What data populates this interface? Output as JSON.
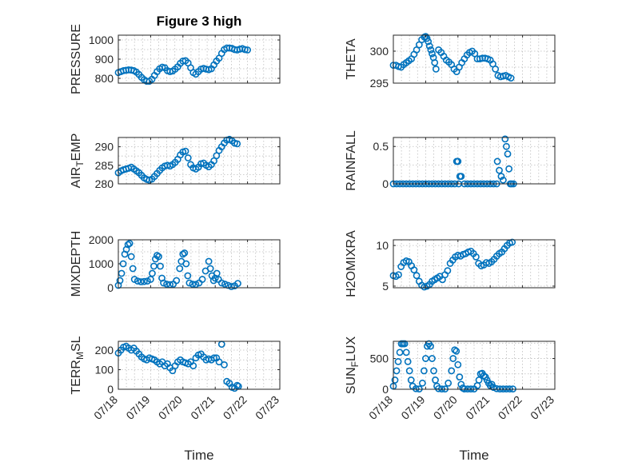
{
  "chart_data": [
    {
      "id": "pressure",
      "type": "scatter",
      "title": "Figure 3 high",
      "ylabel": "PRESSURE",
      "ylabel_sub": null,
      "ylim": [
        775,
        1025
      ],
      "yticks": [
        800,
        900,
        1000
      ],
      "xlim": [
        0,
        5
      ],
      "xticks": [
        "07/18",
        "07/19",
        "07/20",
        "07/21",
        "07/22",
        "07/23"
      ],
      "show_xticklabels": false,
      "xlabel": "",
      "grid": true,
      "color": "#0072BD",
      "x": [
        0,
        0.08,
        0.16,
        0.24,
        0.32,
        0.4,
        0.48,
        0.56,
        0.64,
        0.72,
        0.8,
        0.88,
        0.96,
        1.04,
        1.12,
        1.2,
        1.28,
        1.36,
        1.44,
        1.52,
        1.6,
        1.68,
        1.76,
        1.84,
        1.92,
        2.0,
        2.08,
        2.16,
        2.24,
        2.32,
        2.4,
        2.48,
        2.56,
        2.64,
        2.72,
        2.8,
        2.88,
        2.96,
        3.04,
        3.12,
        3.2,
        3.28,
        3.36,
        3.44,
        3.52,
        3.6,
        3.68,
        3.76,
        3.84,
        3.92,
        4.0
      ],
      "y": [
        830,
        835,
        840,
        842,
        844,
        843,
        840,
        832,
        820,
        805,
        793,
        785,
        785,
        795,
        815,
        835,
        850,
        858,
        855,
        840,
        835,
        838,
        848,
        860,
        878,
        890,
        892,
        880,
        855,
        830,
        822,
        835,
        848,
        852,
        848,
        845,
        850,
        870,
        890,
        905,
        930,
        950,
        958,
        958,
        956,
        950,
        948,
        952,
        955,
        950,
        948
      ]
    },
    {
      "id": "theta",
      "type": "scatter",
      "title": "",
      "ylabel": "THETA",
      "ylabel_sub": null,
      "ylim": [
        295,
        302.5
      ],
      "yticks": [
        295,
        300
      ],
      "xlim": [
        0,
        5
      ],
      "xticks": [
        "07/18",
        "07/19",
        "07/20",
        "07/21",
        "07/22",
        "07/23"
      ],
      "show_xticklabels": false,
      "xlabel": "",
      "grid": true,
      "color": "#0072BD",
      "x": [
        0,
        0.08,
        0.16,
        0.24,
        0.32,
        0.4,
        0.48,
        0.56,
        0.64,
        0.72,
        0.8,
        0.88,
        0.96,
        1.0,
        1.04,
        1.08,
        1.12,
        1.16,
        1.2,
        1.24,
        1.28,
        1.32,
        1.4,
        1.48,
        1.56,
        1.64,
        1.72,
        1.8,
        1.88,
        1.96,
        2.04,
        2.12,
        2.2,
        2.28,
        2.36,
        2.44,
        2.52,
        2.6,
        2.68,
        2.76,
        2.84,
        2.92,
        3.0,
        3.08,
        3.16,
        3.24,
        3.32,
        3.4,
        3.48,
        3.56,
        3.64
      ],
      "y": [
        297.8,
        297.8,
        297.6,
        297.5,
        297.9,
        298.2,
        298.5,
        298.8,
        299.5,
        300.2,
        301.0,
        301.8,
        302.2,
        302.3,
        302.0,
        301.5,
        300.8,
        300.2,
        299.6,
        299.0,
        298.2,
        297.2,
        300.2,
        299.8,
        299.2,
        298.6,
        298.3,
        297.9,
        297.2,
        296.8,
        297.5,
        298.2,
        298.8,
        299.4,
        299.8,
        300.0,
        299.6,
        298.8,
        298.8,
        298.9,
        298.9,
        298.8,
        298.6,
        298.0,
        297.2,
        296.2,
        296.0,
        296.1,
        296.2,
        296.0,
        295.8
      ]
    },
    {
      "id": "air_temp",
      "type": "scatter",
      "title": "",
      "ylabel": "AIR",
      "ylabel_sub": "T",
      "ylabel_tail": "EMP",
      "ylim": [
        280,
        292.5
      ],
      "yticks": [
        280,
        285,
        290
      ],
      "xlim": [
        0,
        5
      ],
      "xticks": [
        "07/18",
        "07/19",
        "07/20",
        "07/21",
        "07/22",
        "07/23"
      ],
      "show_xticklabels": false,
      "xlabel": "",
      "grid": true,
      "color": "#0072BD",
      "x": [
        0,
        0.08,
        0.16,
        0.24,
        0.32,
        0.4,
        0.48,
        0.56,
        0.64,
        0.72,
        0.8,
        0.88,
        0.96,
        1.04,
        1.12,
        1.2,
        1.28,
        1.36,
        1.44,
        1.52,
        1.6,
        1.68,
        1.76,
        1.84,
        1.92,
        2.0,
        2.08,
        2.16,
        2.24,
        2.32,
        2.4,
        2.48,
        2.56,
        2.64,
        2.72,
        2.8,
        2.88,
        2.96,
        3.04,
        3.12,
        3.2,
        3.28,
        3.36,
        3.44,
        3.52,
        3.6,
        3.68
      ],
      "y": [
        283.0,
        283.5,
        283.8,
        284.0,
        284.2,
        284.5,
        284.0,
        283.5,
        283.0,
        282.3,
        281.6,
        281.2,
        281.0,
        281.3,
        282.0,
        282.8,
        283.6,
        284.3,
        284.8,
        285.0,
        284.8,
        285.2,
        285.8,
        286.6,
        287.8,
        288.6,
        288.8,
        287.0,
        285.2,
        284.3,
        284.0,
        284.5,
        285.4,
        285.6,
        285.0,
        284.6,
        285.2,
        286.2,
        287.6,
        289.0,
        290.0,
        291.0,
        291.8,
        292.0,
        291.6,
        291.0,
        290.8
      ]
    },
    {
      "id": "rainfall",
      "type": "scatter",
      "title": "",
      "ylabel": "RAINFALL",
      "ylabel_sub": null,
      "ylim": [
        0,
        0.62
      ],
      "yticks": [
        0,
        0.5
      ],
      "xlim": [
        0,
        5
      ],
      "xticks": [
        "07/18",
        "07/19",
        "07/20",
        "07/21",
        "07/22",
        "07/23"
      ],
      "show_xticklabels": false,
      "xlabel": "",
      "grid": true,
      "color": "#0072BD",
      "x": [
        0,
        0.1,
        0.2,
        0.3,
        0.4,
        0.5,
        0.6,
        0.7,
        0.8,
        0.9,
        1.0,
        1.1,
        1.2,
        1.3,
        1.4,
        1.5,
        1.6,
        1.7,
        1.8,
        1.9,
        1.96,
        2.0,
        2.02,
        2.06,
        2.1,
        2.2,
        2.3,
        2.4,
        2.5,
        2.6,
        2.7,
        2.8,
        2.9,
        3.0,
        3.1,
        3.2,
        3.22,
        3.28,
        3.34,
        3.4,
        3.46,
        3.5,
        3.54,
        3.58,
        3.62,
        3.66,
        3.72
      ],
      "y": [
        0,
        0,
        0,
        0,
        0,
        0,
        0,
        0,
        0,
        0,
        0,
        0,
        0,
        0,
        0,
        0,
        0,
        0,
        0,
        0,
        0.3,
        0.3,
        0,
        0.1,
        0.1,
        0,
        0,
        0,
        0,
        0,
        0,
        0,
        0,
        0,
        0,
        0,
        0.3,
        0.18,
        0.1,
        0.05,
        0.6,
        0.5,
        0.4,
        0.2,
        0,
        0,
        0
      ]
    },
    {
      "id": "mixdepth",
      "type": "scatter",
      "title": "",
      "ylabel": "MIXDEPTH",
      "ylabel_sub": null,
      "ylim": [
        0,
        2000
      ],
      "yticks": [
        0,
        1000,
        2000
      ],
      "xlim": [
        0,
        5
      ],
      "xticks": [
        "07/18",
        "07/19",
        "07/20",
        "07/21",
        "07/22",
        "07/23"
      ],
      "show_xticklabels": false,
      "xlabel": "",
      "grid": true,
      "color": "#0072BD",
      "x": [
        0,
        0.05,
        0.1,
        0.15,
        0.2,
        0.25,
        0.3,
        0.35,
        0.4,
        0.45,
        0.5,
        0.6,
        0.7,
        0.8,
        0.9,
        1.0,
        1.05,
        1.1,
        1.15,
        1.2,
        1.25,
        1.3,
        1.35,
        1.4,
        1.5,
        1.6,
        1.7,
        1.8,
        1.9,
        1.95,
        2.0,
        2.05,
        2.1,
        2.15,
        2.2,
        2.3,
        2.4,
        2.5,
        2.6,
        2.7,
        2.8,
        2.85,
        2.9,
        2.95,
        3.0,
        3.05,
        3.1,
        3.2,
        3.3,
        3.4,
        3.5,
        3.6,
        3.7
      ],
      "y": [
        100,
        300,
        600,
        1000,
        1400,
        1600,
        1800,
        1850,
        1300,
        800,
        350,
        280,
        250,
        260,
        280,
        350,
        600,
        900,
        1200,
        1350,
        1300,
        900,
        400,
        200,
        150,
        130,
        150,
        300,
        800,
        1100,
        1400,
        1450,
        1000,
        500,
        200,
        150,
        140,
        200,
        350,
        700,
        1100,
        800,
        500,
        300,
        400,
        600,
        350,
        200,
        150,
        100,
        50,
        80,
        180
      ]
    },
    {
      "id": "h2omixra",
      "type": "scatter",
      "title": "",
      "ylabel": "H2OMIXRA",
      "ylabel_sub": null,
      "ylim": [
        4.8,
        10.7
      ],
      "yticks": [
        5,
        10
      ],
      "xlim": [
        0,
        5
      ],
      "xticks": [
        "07/18",
        "07/19",
        "07/20",
        "07/21",
        "07/22",
        "07/23"
      ],
      "show_xticklabels": false,
      "xlabel": "",
      "grid": true,
      "color": "#0072BD",
      "x": [
        0,
        0.08,
        0.16,
        0.24,
        0.32,
        0.4,
        0.48,
        0.56,
        0.64,
        0.72,
        0.8,
        0.88,
        0.96,
        1.04,
        1.12,
        1.2,
        1.28,
        1.36,
        1.44,
        1.52,
        1.6,
        1.68,
        1.76,
        1.84,
        1.92,
        2.0,
        2.08,
        2.16,
        2.24,
        2.32,
        2.4,
        2.48,
        2.56,
        2.64,
        2.72,
        2.8,
        2.88,
        2.96,
        3.04,
        3.12,
        3.2,
        3.28,
        3.36,
        3.44,
        3.52,
        3.6,
        3.68
      ],
      "y": [
        6.3,
        6.2,
        6.4,
        7.4,
        7.9,
        8.1,
        8.0,
        7.5,
        7.0,
        6.3,
        5.6,
        5.1,
        4.9,
        5.0,
        5.2,
        5.6,
        5.8,
        6.0,
        6.2,
        5.8,
        6.4,
        6.9,
        7.8,
        8.2,
        8.6,
        8.8,
        8.7,
        8.9,
        9.0,
        9.2,
        9.3,
        9.0,
        8.6,
        7.8,
        7.5,
        7.6,
        7.9,
        7.8,
        8.0,
        8.3,
        8.7,
        9.0,
        9.2,
        9.6,
        10.0,
        10.3,
        10.4
      ]
    },
    {
      "id": "terr_msl",
      "type": "scatter",
      "title": "",
      "ylabel": "TERR",
      "ylabel_sub": "M",
      "ylabel_tail": "SL",
      "ylim": [
        0,
        245
      ],
      "yticks": [
        0,
        100,
        200
      ],
      "xlim": [
        0,
        5
      ],
      "xticks": [
        "07/18",
        "07/19",
        "07/20",
        "07/21",
        "07/22",
        "07/23"
      ],
      "show_xticklabels": true,
      "xlabel": "Time",
      "grid": true,
      "color": "#0072BD",
      "x": [
        0,
        0.08,
        0.16,
        0.24,
        0.32,
        0.4,
        0.48,
        0.56,
        0.64,
        0.72,
        0.8,
        0.88,
        0.96,
        1.04,
        1.12,
        1.2,
        1.28,
        1.36,
        1.44,
        1.52,
        1.6,
        1.68,
        1.76,
        1.84,
        1.92,
        2.0,
        2.08,
        2.16,
        2.24,
        2.32,
        2.4,
        2.48,
        2.56,
        2.64,
        2.72,
        2.8,
        2.88,
        2.96,
        3.04,
        3.12,
        3.2,
        3.28,
        3.36,
        3.44,
        3.52,
        3.6,
        3.68,
        3.72
      ],
      "y": [
        185,
        200,
        215,
        220,
        210,
        200,
        210,
        195,
        180,
        165,
        155,
        150,
        160,
        155,
        150,
        140,
        130,
        140,
        120,
        130,
        110,
        95,
        120,
        140,
        150,
        140,
        135,
        130,
        140,
        120,
        160,
        175,
        180,
        165,
        150,
        155,
        150,
        160,
        160,
        140,
        230,
        125,
        40,
        30,
        10,
        5,
        20,
        15
      ]
    },
    {
      "id": "sun_flux",
      "type": "scatter",
      "title": "",
      "ylabel": "SUN",
      "ylabel_sub": "F",
      "ylabel_tail": "LUX",
      "ylim": [
        0,
        780
      ],
      "yticks": [
        0,
        500
      ],
      "xlim": [
        0,
        5
      ],
      "xticks": [
        "07/18",
        "07/19",
        "07/20",
        "07/21",
        "07/22",
        "07/23"
      ],
      "show_xticklabels": true,
      "xlabel": "Time",
      "grid": true,
      "color": "#0072BD",
      "x": [
        0,
        0.05,
        0.1,
        0.15,
        0.2,
        0.25,
        0.3,
        0.35,
        0.4,
        0.45,
        0.5,
        0.55,
        0.6,
        0.7,
        0.8,
        0.9,
        0.95,
        1.0,
        1.05,
        1.1,
        1.15,
        1.2,
        1.25,
        1.3,
        1.35,
        1.4,
        1.5,
        1.6,
        1.7,
        1.8,
        1.85,
        1.9,
        1.95,
        2.0,
        2.05,
        2.1,
        2.15,
        2.2,
        2.3,
        2.4,
        2.5,
        2.6,
        2.65,
        2.7,
        2.75,
        2.8,
        2.85,
        2.9,
        2.95,
        3.0,
        3.05,
        3.1,
        3.2,
        3.3,
        3.4,
        3.5,
        3.6,
        3.7
      ],
      "y": [
        50,
        150,
        300,
        450,
        600,
        740,
        740,
        740,
        600,
        450,
        300,
        150,
        50,
        10,
        5,
        100,
        300,
        500,
        700,
        740,
        700,
        500,
        300,
        150,
        50,
        10,
        5,
        5,
        100,
        300,
        500,
        640,
        620,
        400,
        200,
        80,
        20,
        5,
        5,
        5,
        5,
        60,
        150,
        250,
        260,
        220,
        200,
        150,
        100,
        60,
        80,
        30,
        10,
        5,
        5,
        5,
        5,
        5
      ]
    }
  ]
}
